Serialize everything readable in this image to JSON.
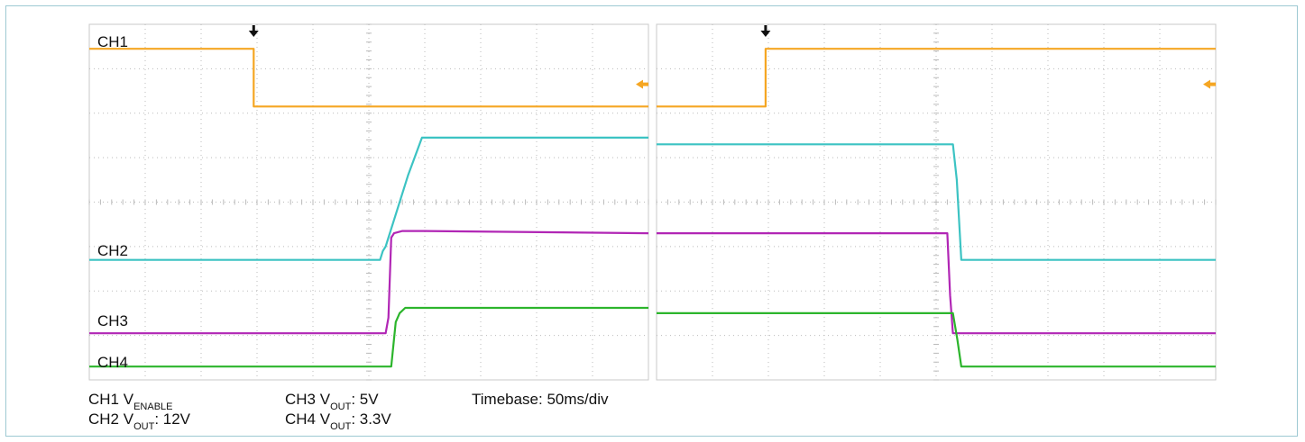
{
  "chart_data": {
    "type": "line",
    "panels": [
      {
        "name": "left",
        "ylim": [
          0,
          8
        ],
        "xlim": [
          0,
          10
        ],
        "grid": true,
        "trigger_marker": "down-arrow",
        "series": [
          {
            "name": "CH1",
            "color": "#f5a623",
            "points": [
              [
                0,
                7.45
              ],
              [
                2.94,
                7.45
              ],
              [
                2.94,
                6.15
              ],
              [
                10,
                6.15
              ]
            ]
          },
          {
            "name": "CH2",
            "color": "#3cc3c3",
            "points": [
              [
                0,
                2.7
              ],
              [
                5.2,
                2.7
              ],
              [
                5.25,
                2.9
              ],
              [
                5.3,
                3.0
              ],
              [
                5.35,
                3.2
              ],
              [
                5.45,
                3.6
              ],
              [
                5.7,
                4.6
              ],
              [
                5.95,
                5.45
              ],
              [
                10,
                5.45
              ]
            ]
          },
          {
            "name": "CH3",
            "color": "#b126b5",
            "points": [
              [
                0,
                1.05
              ],
              [
                5.3,
                1.05
              ],
              [
                5.35,
                1.4
              ],
              [
                5.4,
                3.2
              ],
              [
                5.45,
                3.3
              ],
              [
                5.6,
                3.35
              ],
              [
                6.0,
                3.35
              ],
              [
                10,
                3.3
              ]
            ]
          },
          {
            "name": "CH4",
            "color": "#2cb52c",
            "points": [
              [
                0,
                0.3
              ],
              [
                5.4,
                0.3
              ],
              [
                5.48,
                1.3
              ],
              [
                5.55,
                1.5
              ],
              [
                5.65,
                1.62
              ],
              [
                10,
                1.62
              ]
            ]
          }
        ]
      },
      {
        "name": "right",
        "ylim": [
          0,
          8
        ],
        "xlim": [
          0,
          10
        ],
        "grid": true,
        "trigger_marker": "down-arrow",
        "series": [
          {
            "name": "CH1",
            "color": "#f5a623",
            "points": [
              [
                0,
                6.15
              ],
              [
                1.95,
                6.15
              ],
              [
                1.95,
                7.45
              ],
              [
                10,
                7.45
              ]
            ]
          },
          {
            "name": "CH2",
            "color": "#3cc3c3",
            "points": [
              [
                0,
                5.3
              ],
              [
                5.3,
                5.3
              ],
              [
                5.37,
                4.5
              ],
              [
                5.45,
                2.7
              ],
              [
                10,
                2.7
              ]
            ]
          },
          {
            "name": "CH3",
            "color": "#b126b5",
            "points": [
              [
                0,
                3.3
              ],
              [
                5.2,
                3.3
              ],
              [
                5.25,
                1.9
              ],
              [
                5.3,
                1.05
              ],
              [
                10,
                1.05
              ]
            ]
          },
          {
            "name": "CH4",
            "color": "#2cb52c",
            "points": [
              [
                0,
                1.5
              ],
              [
                5.3,
                1.5
              ],
              [
                5.38,
                0.9
              ],
              [
                5.45,
                0.3
              ],
              [
                10,
                0.3
              ]
            ]
          }
        ]
      }
    ],
    "channel_labels": [
      "CH1",
      "CH2",
      "CH3",
      "CH4"
    ],
    "caption": {
      "ch1": {
        "pre": "CH1 V",
        "sub": "ENABLE",
        "post": ""
      },
      "ch2": {
        "pre": "CH2 V",
        "sub": "OUT",
        "post": ": 12V"
      },
      "ch3": {
        "pre": "CH3 V",
        "sub": "OUT",
        "post": ": 5V"
      },
      "ch4": {
        "pre": "CH4 V",
        "sub": "OUT",
        "post": ": 3.3V"
      },
      "timebase": "Timebase: 50ms/div"
    },
    "colors": {
      "ch1": "#f5a623",
      "ch2": "#3cc3c3",
      "ch3": "#b126b5",
      "ch4": "#2cb52c",
      "grid": "#bbbbbb",
      "frame": "#c8c8c8"
    }
  }
}
